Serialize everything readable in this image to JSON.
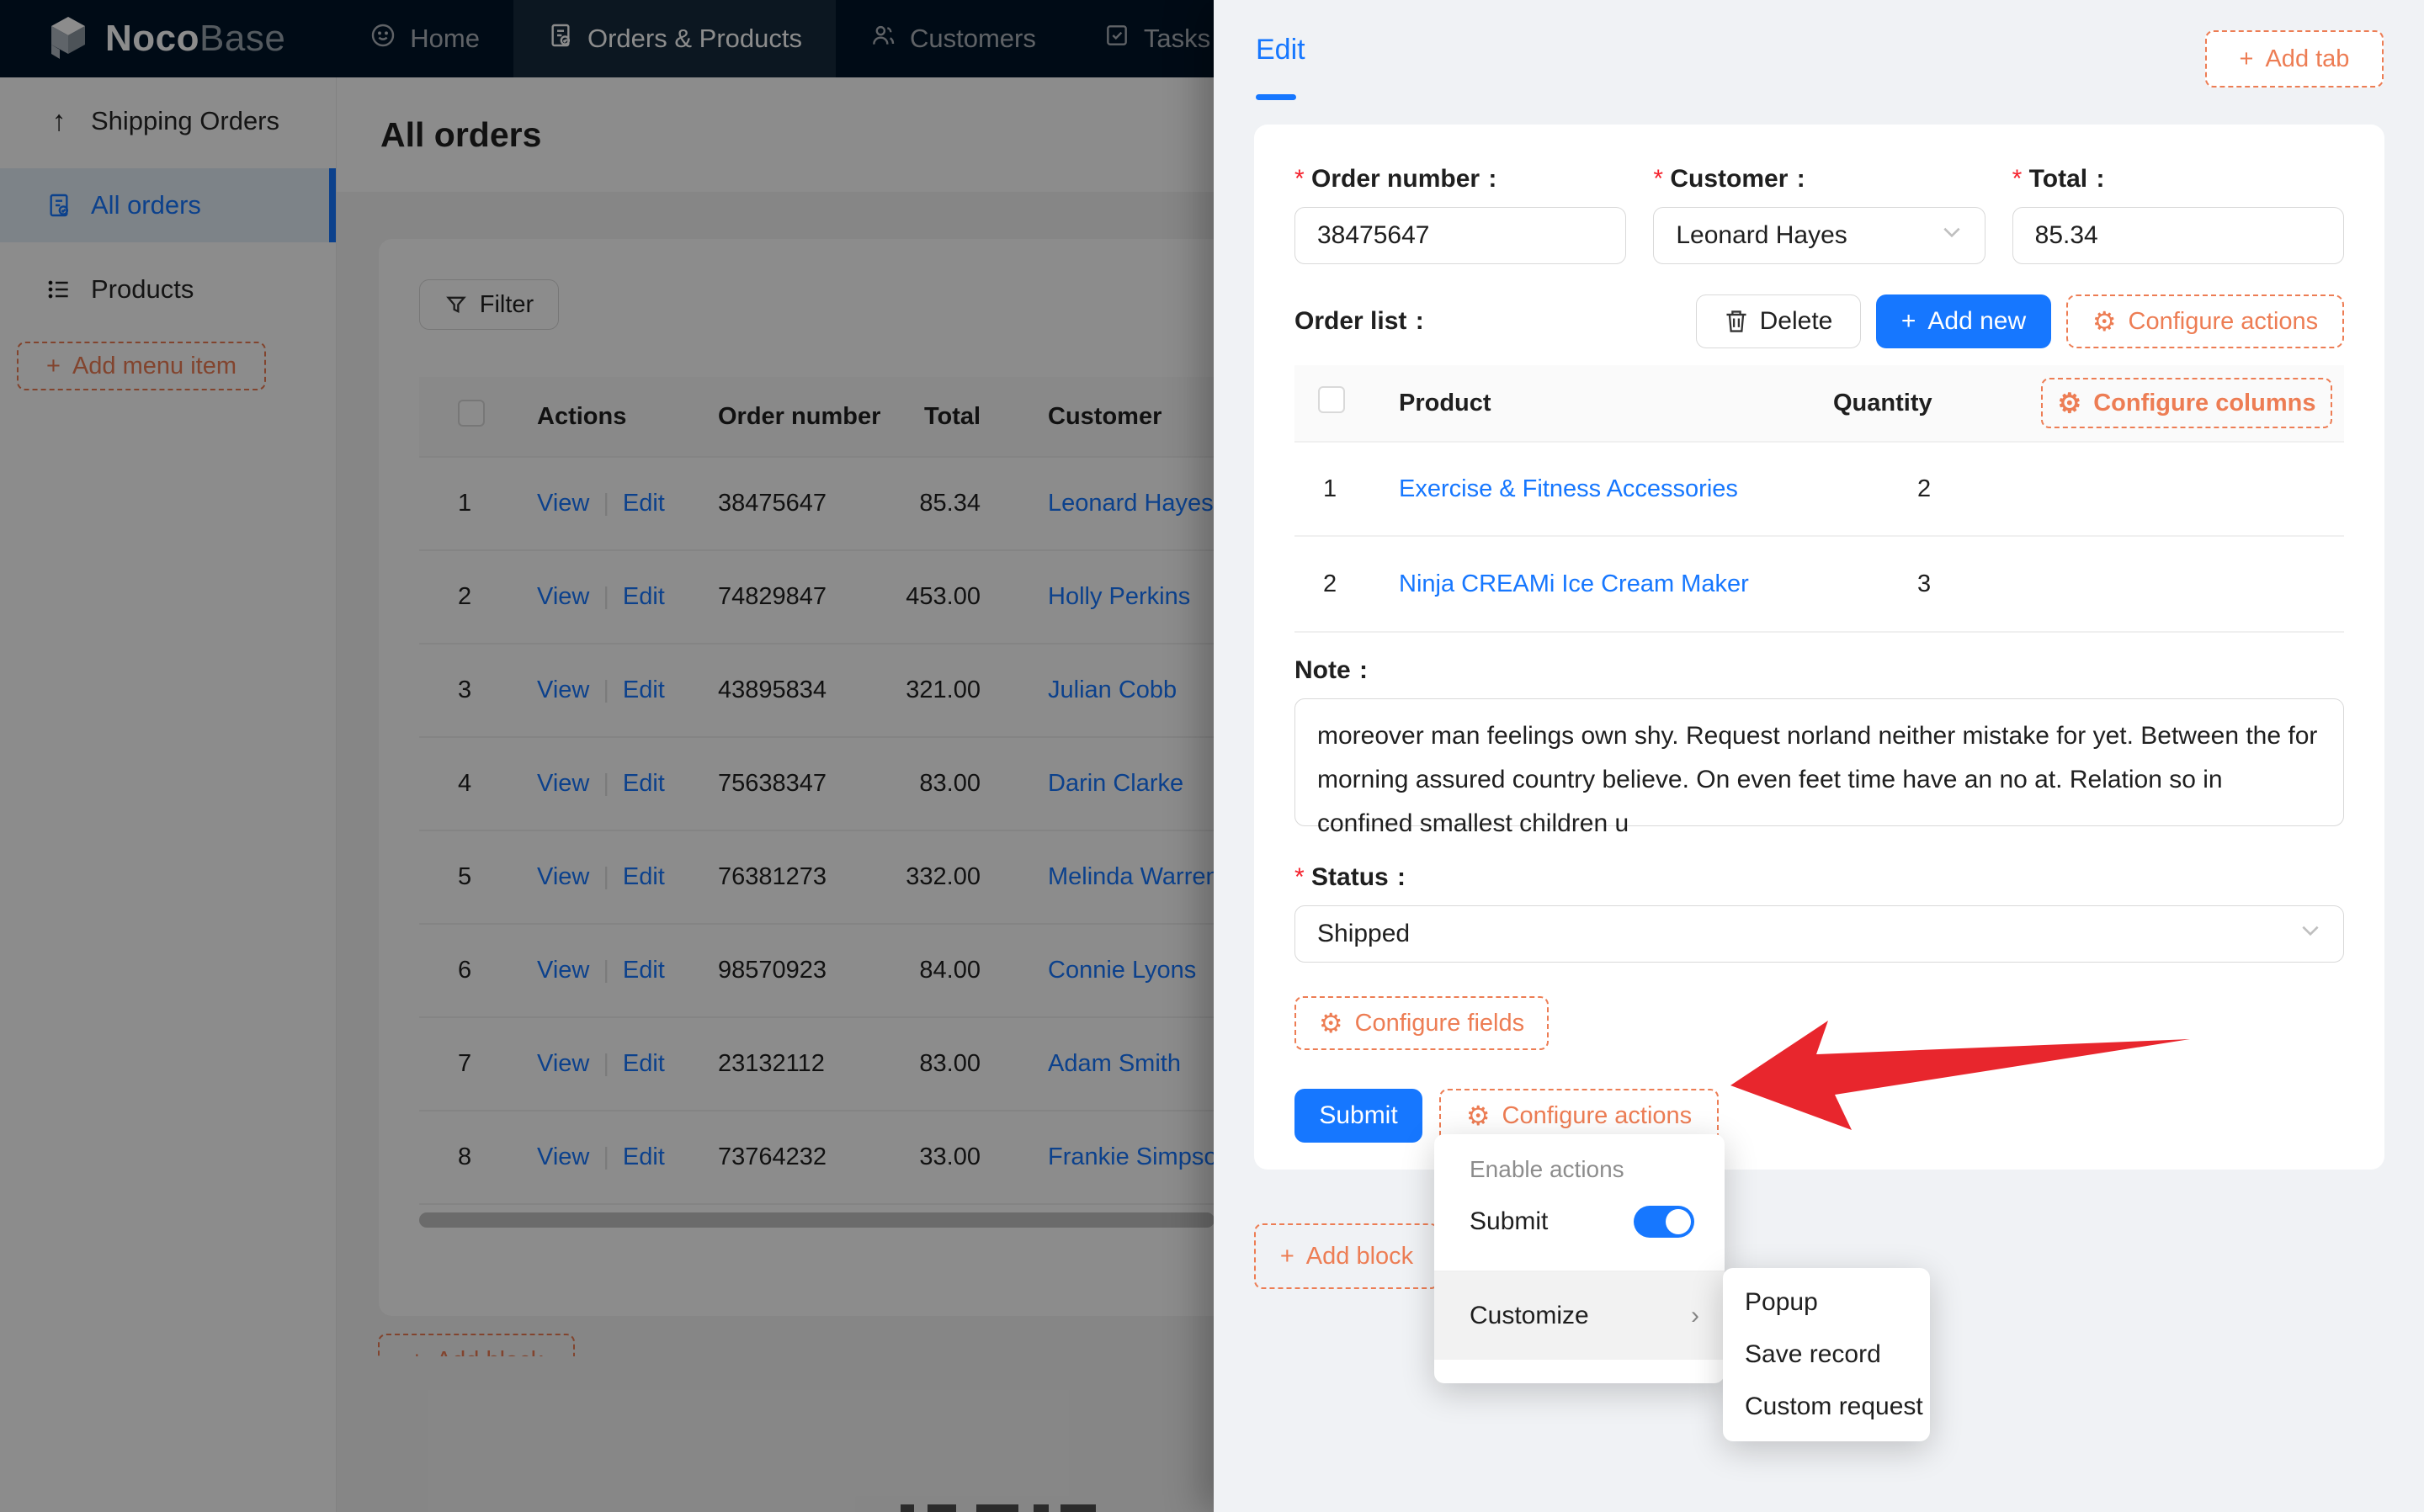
{
  "nav": {
    "brand_bold": "Noco",
    "brand_light": "Base",
    "items": [
      {
        "label": "Home",
        "icon": "home-icon",
        "active": false
      },
      {
        "label": "Orders & Products",
        "icon": "orders-icon",
        "active": true
      },
      {
        "label": "Customers",
        "icon": "customers-icon",
        "active": false
      },
      {
        "label": "Tasks",
        "icon": "tasks-icon",
        "active": false
      }
    ]
  },
  "sidebar": {
    "items": [
      {
        "label": "Shipping Orders",
        "icon": "arrow-up-icon",
        "active": false
      },
      {
        "label": "All orders",
        "icon": "order-file-icon",
        "active": true
      },
      {
        "label": "Products",
        "icon": "list-icon",
        "active": false
      }
    ],
    "add_menu_item_label": "Add menu item"
  },
  "main": {
    "title": "All orders",
    "filter_label": "Filter",
    "table": {
      "columns": [
        "Actions",
        "Order number",
        "Total",
        "Customer"
      ],
      "rows": [
        {
          "index": "1",
          "view": "View",
          "edit": "Edit",
          "order_number": "38475647",
          "total": "85.34",
          "customer": "Leonard Hayes"
        },
        {
          "index": "2",
          "view": "View",
          "edit": "Edit",
          "order_number": "74829847",
          "total": "453.00",
          "customer": "Holly Perkins"
        },
        {
          "index": "3",
          "view": "View",
          "edit": "Edit",
          "order_number": "43895834",
          "total": "321.00",
          "customer": "Julian Cobb"
        },
        {
          "index": "4",
          "view": "View",
          "edit": "Edit",
          "order_number": "75638347",
          "total": "83.00",
          "customer": "Darin Clarke"
        },
        {
          "index": "5",
          "view": "View",
          "edit": "Edit",
          "order_number": "76381273",
          "total": "332.00",
          "customer": "Melinda Warren"
        },
        {
          "index": "6",
          "view": "View",
          "edit": "Edit",
          "order_number": "98570923",
          "total": "84.00",
          "customer": "Connie Lyons"
        },
        {
          "index": "7",
          "view": "View",
          "edit": "Edit",
          "order_number": "23132112",
          "total": "83.00",
          "customer": "Adam Smith"
        },
        {
          "index": "8",
          "view": "View",
          "edit": "Edit",
          "order_number": "73764232",
          "total": "33.00",
          "customer": "Frankie Simpson"
        }
      ]
    },
    "add_block_label": "Add block"
  },
  "drawer": {
    "tab_label": "Edit",
    "add_tab_label": "Add tab",
    "form": {
      "order_number": {
        "label": "Order number",
        "value": "38475647"
      },
      "customer": {
        "label": "Customer",
        "value": "Leonard Hayes"
      },
      "total": {
        "label": "Total",
        "value": "85.34"
      },
      "order_list_label": "Order list",
      "delete_label": "Delete",
      "add_new_label": "Add new",
      "configure_actions_label": "Configure actions",
      "order_table": {
        "product_col": "Product",
        "quantity_col": "Quantity",
        "configure_columns_label": "Configure columns",
        "rows": [
          {
            "index": "1",
            "product": "Exercise & Fitness Accessories",
            "quantity": "2"
          },
          {
            "index": "2",
            "product": "Ninja CREAMi Ice Cream Maker",
            "quantity": "3"
          }
        ]
      },
      "note": {
        "label": "Note",
        "value": "moreover man feelings own shy. Request norland neither mistake for yet. Between the for morning assured country believe. On even feet time have an no at. Relation so in confined smallest children u"
      },
      "status": {
        "label": "Status",
        "value": "Shipped"
      }
    },
    "configure_fields_label": "Configure fields",
    "submit_label": "Submit",
    "configure_actions_label": "Configure actions",
    "add_block_label": "Add block"
  },
  "action_menu": {
    "group_label": "Enable actions",
    "submit_label": "Submit",
    "submit_enabled": true,
    "customize_label": "Customize",
    "submenu": [
      "Popup",
      "Save record",
      "Custom request"
    ]
  },
  "colors": {
    "accent_orange": "#ed7d54",
    "primary_blue": "#1677ff",
    "nav_bg": "#001529",
    "arrow_red": "#e8262d"
  }
}
